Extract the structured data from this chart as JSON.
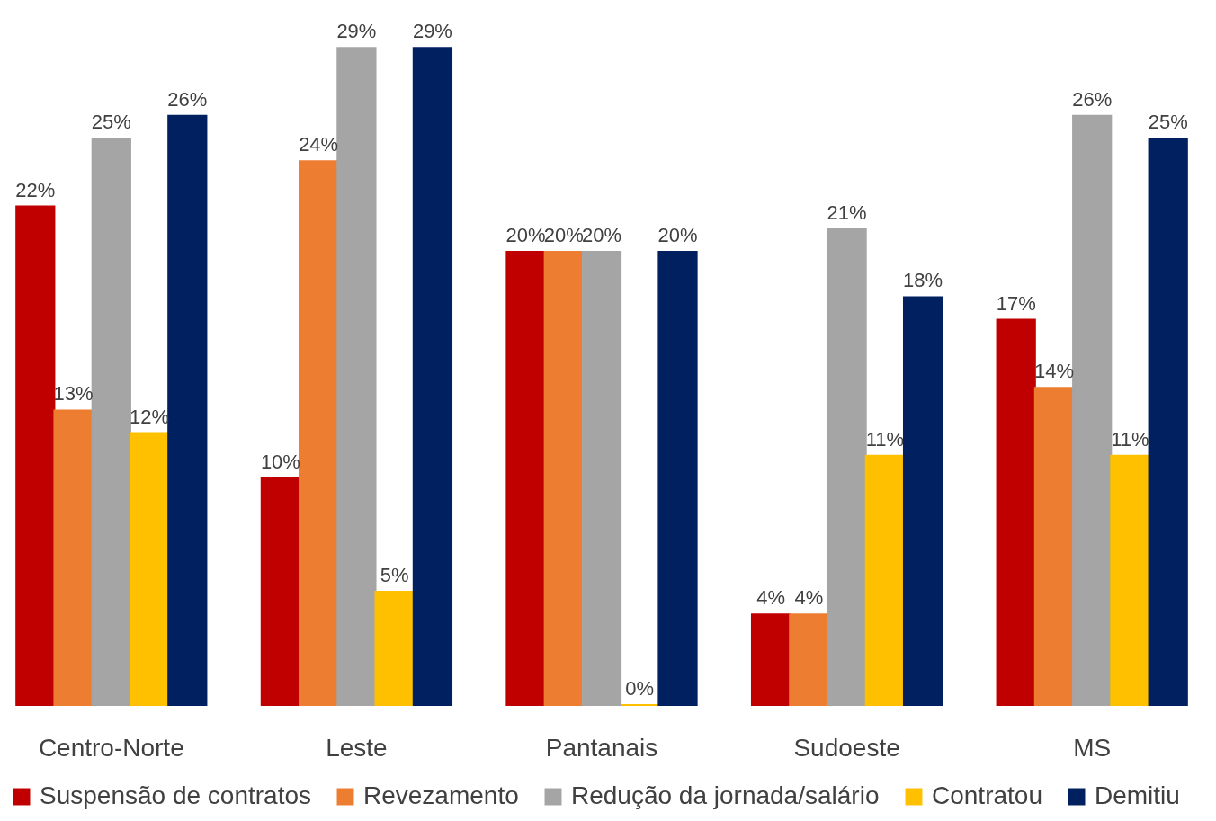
{
  "chart_data": {
    "type": "bar",
    "categories": [
      "Centro-Norte",
      "Leste",
      "Pantanais",
      "Sudoeste",
      "MS"
    ],
    "series": [
      {
        "name": "Suspensão de contratos",
        "color": "#c00000",
        "values": [
          22,
          10,
          20,
          4,
          17
        ],
        "value_labels": [
          "22%",
          "10%",
          "20%",
          "4%",
          "17%"
        ]
      },
      {
        "name": "Revezamento",
        "color": "#ed7d31",
        "values": [
          13,
          24,
          20,
          4,
          14
        ],
        "value_labels": [
          "13%",
          "24%",
          "20%",
          "4%",
          "14%"
        ]
      },
      {
        "name": "Redução da jornada/salário",
        "color": "#a5a5a5",
        "values": [
          25,
          29,
          20,
          21,
          26
        ],
        "value_labels": [
          "25%",
          "29%",
          "20%",
          "21%",
          "26%"
        ]
      },
      {
        "name": "Contratou",
        "color": "#ffc000",
        "values": [
          12,
          5,
          0,
          11,
          11
        ],
        "value_labels": [
          "12%",
          "5%",
          "0%",
          "11%",
          "11%"
        ]
      },
      {
        "name": "Demitiu",
        "color": "#002060",
        "values": [
          26,
          29,
          20,
          18,
          25
        ],
        "value_labels": [
          "26%",
          "29%",
          "20%",
          "18%",
          "25%"
        ]
      }
    ],
    "legend": "bottom",
    "grid": false
  }
}
